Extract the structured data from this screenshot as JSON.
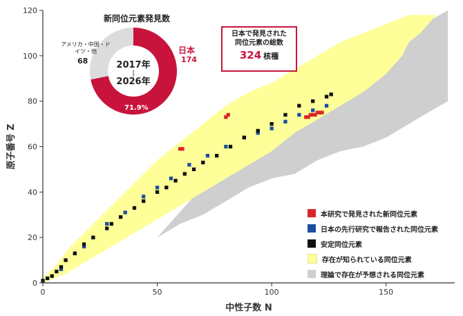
{
  "chart_data": {
    "type": "scatter",
    "title": "",
    "xlabel": "中性子数 N",
    "ylabel": "原子番号 Z",
    "xlim": [
      0,
      180
    ],
    "ylim": [
      0,
      120
    ],
    "xticks": [
      "0",
      "50",
      "100",
      "150"
    ],
    "yticks": [
      "0",
      "20",
      "40",
      "60",
      "80",
      "100",
      "120"
    ],
    "colors": {
      "new_japan": "#d9252a",
      "reported_japan": "#1a4fa0",
      "stable": "#111111",
      "known": "#ffff99",
      "predicted": "#cfcfcf"
    },
    "series": [
      {
        "name": "本研究で発見された新同位元素",
        "color": "#d9252a",
        "points": [
          [
            60,
            59
          ],
          [
            61,
            59
          ],
          [
            80,
            73
          ],
          [
            81,
            74
          ],
          [
            115,
            73
          ],
          [
            116,
            73
          ],
          [
            117,
            74
          ],
          [
            118,
            74
          ],
          [
            119,
            74
          ],
          [
            120,
            75
          ],
          [
            121,
            75
          ],
          [
            122,
            75
          ]
        ]
      },
      {
        "name": "日本の先行研究で報告された同位元素",
        "color": "#1a4fa0",
        "comment": "proton-drip-side band",
        "points": [
          [
            8,
            6
          ],
          [
            14,
            13
          ],
          [
            18,
            16
          ],
          [
            22,
            20
          ],
          [
            28,
            26
          ],
          [
            36,
            31
          ],
          [
            44,
            38
          ],
          [
            50,
            42
          ],
          [
            56,
            46
          ],
          [
            64,
            52
          ],
          [
            72,
            56
          ],
          [
            80,
            60
          ],
          [
            88,
            64
          ],
          [
            94,
            66
          ],
          [
            100,
            68
          ],
          [
            106,
            71
          ],
          [
            112,
            74
          ],
          [
            118,
            76
          ],
          [
            124,
            78
          ]
        ]
      },
      {
        "name": "安定同位元素",
        "color": "#111111",
        "points": [
          [
            0,
            1
          ],
          [
            2,
            2
          ],
          [
            4,
            3
          ],
          [
            6,
            5
          ],
          [
            8,
            7
          ],
          [
            10,
            10
          ],
          [
            14,
            13
          ],
          [
            18,
            17
          ],
          [
            22,
            20
          ],
          [
            28,
            24
          ],
          [
            30,
            26
          ],
          [
            34,
            29
          ],
          [
            40,
            33
          ],
          [
            44,
            36
          ],
          [
            50,
            40
          ],
          [
            54,
            42
          ],
          [
            58,
            45
          ],
          [
            62,
            48
          ],
          [
            66,
            50
          ],
          [
            70,
            53
          ],
          [
            76,
            56
          ],
          [
            82,
            60
          ],
          [
            88,
            64
          ],
          [
            94,
            67
          ],
          [
            100,
            70
          ],
          [
            106,
            74
          ],
          [
            112,
            78
          ],
          [
            118,
            80
          ],
          [
            124,
            82
          ],
          [
            126,
            83
          ]
        ]
      },
      {
        "name": "存在が知られている同位元素",
        "color": "#ffff99",
        "band": {
          "lower": [
            [
              0,
              0
            ],
            [
              10,
              4
            ],
            [
              20,
              10
            ],
            [
              30,
              16
            ],
            [
              40,
              22
            ],
            [
              50,
              28
            ],
            [
              60,
              34
            ],
            [
              70,
              40
            ],
            [
              80,
              46
            ],
            [
              90,
              52
            ],
            [
              100,
              58
            ],
            [
              110,
              66
            ],
            [
              120,
              72
            ],
            [
              130,
              78
            ],
            [
              140,
              84
            ],
            [
              150,
              92
            ],
            [
              157,
              100
            ],
            [
              160,
              106
            ],
            [
              165,
              110
            ],
            [
              172,
              118
            ]
          ],
          "upper": [
            [
              0,
              2
            ],
            [
              6,
              8
            ],
            [
              12,
              16
            ],
            [
              20,
              24
            ],
            [
              30,
              34
            ],
            [
              40,
              44
            ],
            [
              50,
              54
            ],
            [
              60,
              62
            ],
            [
              70,
              70
            ],
            [
              80,
              78
            ],
            [
              90,
              84
            ],
            [
              100,
              88
            ],
            [
              110,
              94
            ],
            [
              120,
              100
            ],
            [
              130,
              106
            ],
            [
              140,
              110
            ],
            [
              150,
              114
            ],
            [
              160,
              118
            ],
            [
              172,
              118
            ]
          ]
        }
      },
      {
        "name": "理論で存在が予想される同位元素",
        "color": "#cfcfcf",
        "band": {
          "lower": [
            [
              50,
              20
            ],
            [
              60,
              26
            ],
            [
              70,
              30
            ],
            [
              80,
              36
            ],
            [
              90,
              42
            ],
            [
              100,
              46
            ],
            [
              110,
              48
            ],
            [
              120,
              54
            ],
            [
              130,
              58
            ],
            [
              140,
              60
            ],
            [
              150,
              64
            ],
            [
              160,
              70
            ],
            [
              170,
              76
            ],
            [
              177,
              80
            ]
          ],
          "upper": [
            [
              80,
              54
            ],
            [
              90,
              60
            ],
            [
              100,
              66
            ],
            [
              110,
              72
            ],
            [
              120,
              80
            ],
            [
              130,
              90
            ],
            [
              140,
              98
            ],
            [
              150,
              104
            ],
            [
              160,
              110
            ],
            [
              170,
              116
            ],
            [
              177,
              120
            ]
          ]
        }
      }
    ],
    "legend": {
      "placement": "bottom-right"
    }
  },
  "donut": {
    "title": "新同位元素発見数",
    "center_line1": "2017年",
    "center_line2": "|",
    "center_line3": "2026年",
    "japan_label": "日本",
    "japan_value": 174,
    "japan_value_text": "174",
    "japan_pct_text": "71.9%",
    "japan_share": 0.719,
    "others_label": "アメリカ・中国・ドイツ・他",
    "others_value": 68,
    "others_value_text": "68",
    "colors": {
      "japan": "#c8143c",
      "others": "#dcdcdc"
    }
  },
  "total_box": {
    "line1": "日本で発見された",
    "line2": "同位元素の総数",
    "value": "324",
    "unit": "核種"
  },
  "legend": {
    "items": [
      {
        "label": "本研究で発見された新同位元素",
        "color": "#d9252a"
      },
      {
        "label": "日本の先行研究で報告された同位元素",
        "color": "#1a4fa0"
      },
      {
        "label": "安定同位元素",
        "color": "#111111"
      },
      {
        "label": "存在が知られている同位元素",
        "color": "#ffff99"
      },
      {
        "label": "理論で存在が予想される同位元素",
        "color": "#cfcfcf"
      }
    ]
  }
}
